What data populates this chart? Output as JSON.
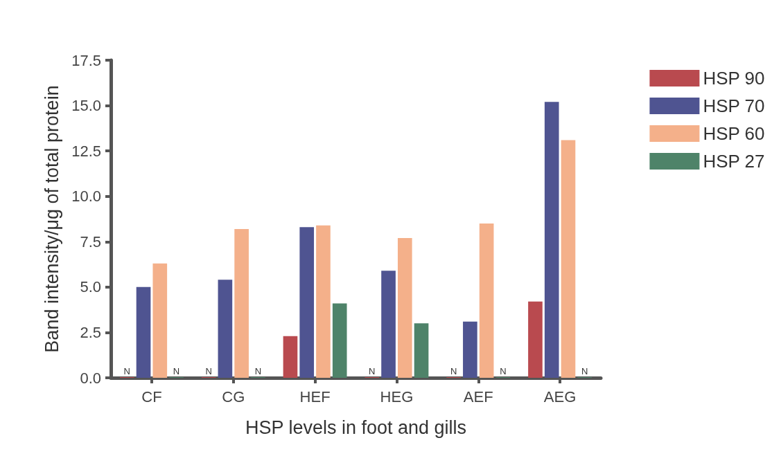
{
  "chart_data": {
    "type": "bar",
    "xlabel": "HSP levels in foot and gills",
    "ylabel": "Band intensity/μg of total protein",
    "categories": [
      "CF",
      "CG",
      "HEF",
      "HEG",
      "AEF",
      "AEG"
    ],
    "series": [
      {
        "name": "HSP 90",
        "color": "#b94a4f",
        "values": [
          0,
          0,
          2.3,
          0,
          0,
          4.2
        ],
        "value_labels": [
          "N",
          "N",
          null,
          "N",
          "N",
          null
        ]
      },
      {
        "name": "HSP 70",
        "color": "#4f5491",
        "values": [
          5.0,
          5.4,
          8.3,
          5.9,
          3.1,
          15.2
        ]
      },
      {
        "name": "HSP 60",
        "color": "#f4b08a",
        "values": [
          6.3,
          8.2,
          8.4,
          7.7,
          8.5,
          13.1
        ]
      },
      {
        "name": "HSP 27",
        "color": "#4e8369",
        "values": [
          0,
          0,
          4.1,
          3.0,
          0,
          0
        ],
        "value_labels": [
          "N",
          "N",
          null,
          null,
          "N",
          "N"
        ]
      }
    ],
    "ylim": [
      0,
      17.5
    ],
    "yticks": [
      {
        "value": 0,
        "label": "0.0"
      },
      {
        "value": 2.5,
        "label": "2.5"
      },
      {
        "value": 5,
        "label": "5.0"
      },
      {
        "value": 7.5,
        "label": "7.5"
      },
      {
        "value": 10,
        "label": "10.0"
      },
      {
        "value": 12.5,
        "label": "12.5"
      },
      {
        "value": 15,
        "label": "15.0"
      },
      {
        "value": 17.5,
        "label": "17.5"
      }
    ],
    "grid": false,
    "legend": "right"
  }
}
